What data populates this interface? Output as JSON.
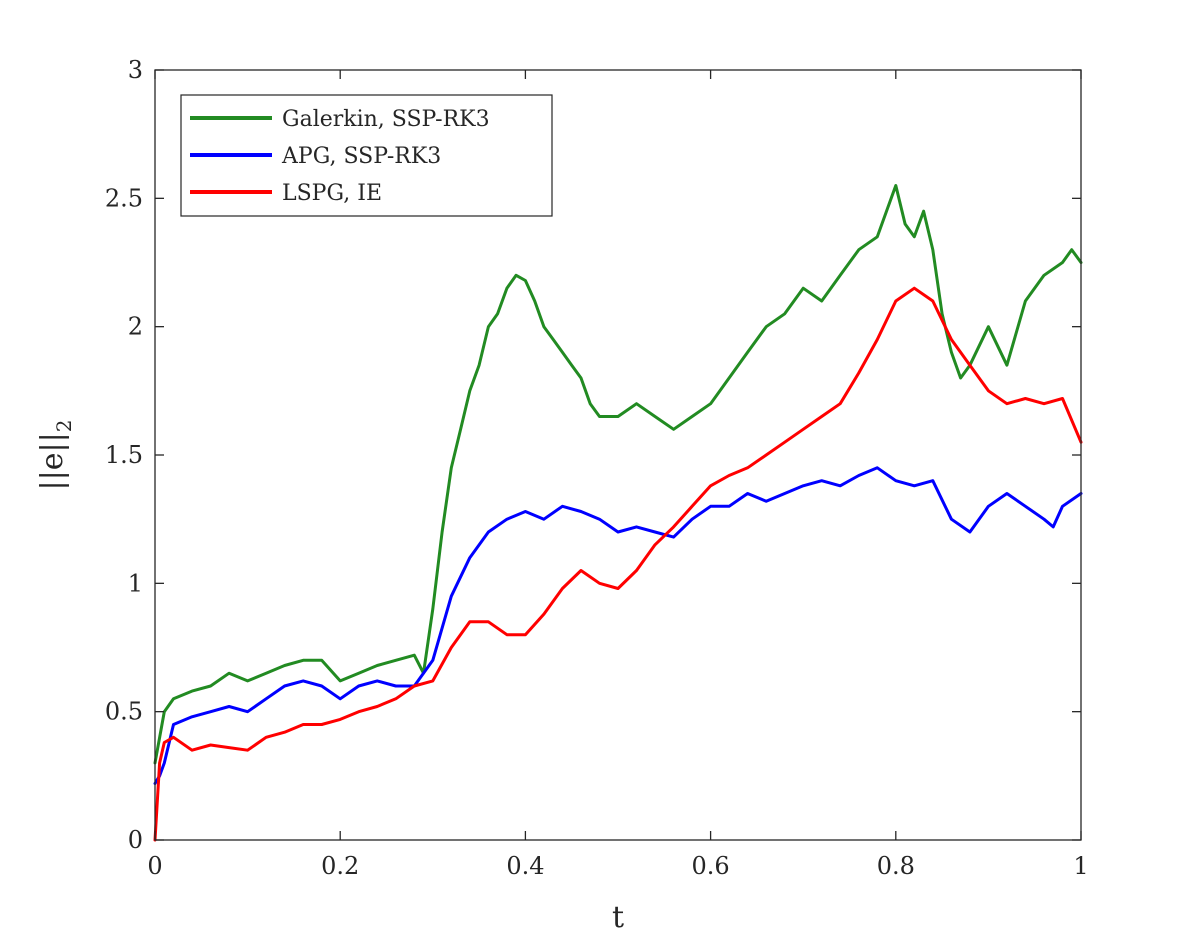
{
  "chart_data": {
    "type": "line",
    "title": "",
    "xlabel": "t",
    "ylabel": "||e||2",
    "ylabel_parts": {
      "main": "||e||",
      "sub": "2"
    },
    "xlim": [
      0,
      1
    ],
    "ylim": [
      0,
      3
    ],
    "xticks": [
      0,
      0.2,
      0.4,
      0.6,
      0.8,
      1
    ],
    "xtick_labels": [
      "0",
      "0.2",
      "0.4",
      "0.6",
      "0.8",
      "1"
    ],
    "yticks": [
      0,
      0.5,
      1,
      1.5,
      2,
      2.5,
      3
    ],
    "ytick_labels": [
      "0",
      "0.5",
      "1",
      "1.5",
      "2",
      "2.5",
      "3"
    ],
    "grid": false,
    "legend_position": "top-left",
    "series": [
      {
        "name": "Galerkin, SSP-RK3",
        "color": "#228b22",
        "x": [
          0,
          0.01,
          0.02,
          0.04,
          0.06,
          0.08,
          0.1,
          0.12,
          0.14,
          0.16,
          0.18,
          0.2,
          0.22,
          0.24,
          0.26,
          0.28,
          0.29,
          0.3,
          0.31,
          0.32,
          0.33,
          0.34,
          0.35,
          0.36,
          0.37,
          0.38,
          0.39,
          0.4,
          0.41,
          0.42,
          0.43,
          0.44,
          0.45,
          0.46,
          0.47,
          0.48,
          0.5,
          0.52,
          0.54,
          0.56,
          0.58,
          0.6,
          0.62,
          0.64,
          0.66,
          0.68,
          0.7,
          0.72,
          0.74,
          0.76,
          0.78,
          0.79,
          0.8,
          0.81,
          0.82,
          0.83,
          0.84,
          0.85,
          0.86,
          0.87,
          0.88,
          0.9,
          0.92,
          0.94,
          0.96,
          0.98,
          0.99,
          1.0
        ],
        "y": [
          0.3,
          0.5,
          0.55,
          0.58,
          0.6,
          0.65,
          0.62,
          0.65,
          0.68,
          0.7,
          0.7,
          0.62,
          0.65,
          0.68,
          0.7,
          0.72,
          0.65,
          0.9,
          1.2,
          1.45,
          1.6,
          1.75,
          1.85,
          2.0,
          2.05,
          2.15,
          2.2,
          2.18,
          2.1,
          2.0,
          1.95,
          1.9,
          1.85,
          1.8,
          1.7,
          1.65,
          1.65,
          1.7,
          1.65,
          1.6,
          1.65,
          1.7,
          1.8,
          1.9,
          2.0,
          2.05,
          2.15,
          2.1,
          2.2,
          2.3,
          2.35,
          2.45,
          2.55,
          2.4,
          2.35,
          2.45,
          2.3,
          2.05,
          1.9,
          1.8,
          1.85,
          2.0,
          1.85,
          2.1,
          2.2,
          2.25,
          2.3,
          2.25
        ]
      },
      {
        "name": "APG, SSP-RK3",
        "color": "#0000ff",
        "x": [
          0,
          0.005,
          0.01,
          0.02,
          0.04,
          0.06,
          0.08,
          0.1,
          0.12,
          0.14,
          0.16,
          0.18,
          0.2,
          0.22,
          0.24,
          0.26,
          0.28,
          0.3,
          0.32,
          0.34,
          0.36,
          0.38,
          0.4,
          0.42,
          0.44,
          0.46,
          0.48,
          0.5,
          0.52,
          0.54,
          0.56,
          0.58,
          0.6,
          0.62,
          0.64,
          0.66,
          0.68,
          0.7,
          0.72,
          0.74,
          0.76,
          0.78,
          0.8,
          0.82,
          0.84,
          0.86,
          0.88,
          0.9,
          0.92,
          0.94,
          0.96,
          0.97,
          0.98,
          1.0
        ],
        "y": [
          0.22,
          0.25,
          0.3,
          0.45,
          0.48,
          0.5,
          0.52,
          0.5,
          0.55,
          0.6,
          0.62,
          0.6,
          0.55,
          0.6,
          0.62,
          0.6,
          0.6,
          0.7,
          0.95,
          1.1,
          1.2,
          1.25,
          1.28,
          1.25,
          1.3,
          1.28,
          1.25,
          1.2,
          1.22,
          1.2,
          1.18,
          1.25,
          1.3,
          1.3,
          1.35,
          1.32,
          1.35,
          1.38,
          1.4,
          1.38,
          1.42,
          1.45,
          1.4,
          1.38,
          1.4,
          1.25,
          1.2,
          1.3,
          1.35,
          1.3,
          1.25,
          1.22,
          1.3,
          1.35
        ]
      },
      {
        "name": "LSPG, IE",
        "color": "#ff0000",
        "x": [
          0,
          0.005,
          0.01,
          0.02,
          0.04,
          0.06,
          0.08,
          0.1,
          0.12,
          0.14,
          0.16,
          0.18,
          0.2,
          0.22,
          0.24,
          0.26,
          0.28,
          0.3,
          0.32,
          0.34,
          0.36,
          0.38,
          0.4,
          0.42,
          0.44,
          0.46,
          0.48,
          0.5,
          0.52,
          0.54,
          0.56,
          0.58,
          0.6,
          0.62,
          0.64,
          0.66,
          0.68,
          0.7,
          0.72,
          0.74,
          0.76,
          0.78,
          0.8,
          0.82,
          0.84,
          0.86,
          0.88,
          0.9,
          0.92,
          0.94,
          0.96,
          0.98,
          1.0
        ],
        "y": [
          0.0,
          0.3,
          0.38,
          0.4,
          0.35,
          0.37,
          0.36,
          0.35,
          0.4,
          0.42,
          0.45,
          0.45,
          0.47,
          0.5,
          0.52,
          0.55,
          0.6,
          0.62,
          0.75,
          0.85,
          0.85,
          0.8,
          0.8,
          0.88,
          0.98,
          1.05,
          1.0,
          0.98,
          1.05,
          1.15,
          1.22,
          1.3,
          1.38,
          1.42,
          1.45,
          1.5,
          1.55,
          1.6,
          1.65,
          1.7,
          1.82,
          1.95,
          2.1,
          2.15,
          2.1,
          1.95,
          1.85,
          1.75,
          1.7,
          1.72,
          1.7,
          1.72,
          1.55
        ]
      }
    ]
  }
}
